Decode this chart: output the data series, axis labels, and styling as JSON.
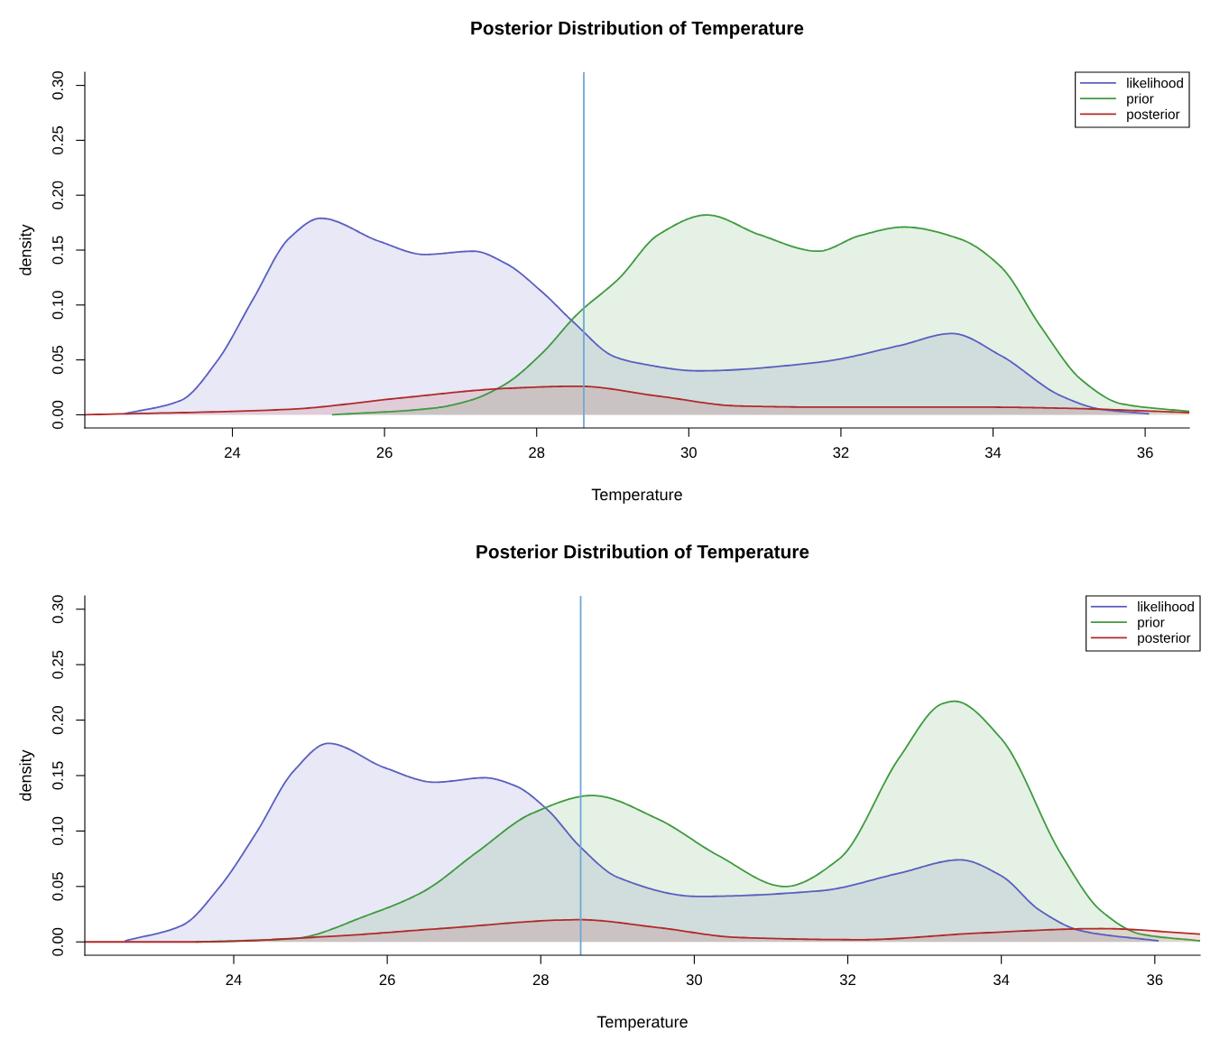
{
  "chart_data": [
    {
      "type": "area",
      "title": "Posterior Distribution of Temperature",
      "xlabel": "Temperature",
      "ylabel": "density",
      "xlim": [
        22.06,
        36.58
      ],
      "ylim": [
        -0.012,
        0.312
      ],
      "xticks": [
        24,
        26,
        28,
        30,
        32,
        34,
        36
      ],
      "yticks": [
        {
          "value": 0,
          "label": "0.00"
        },
        {
          "value": 0.05,
          "label": "0.05"
        },
        {
          "value": 0.1,
          "label": "0.10"
        },
        {
          "value": 0.15,
          "label": "0.15"
        },
        {
          "value": 0.2,
          "label": "0.20"
        },
        {
          "value": 0.25,
          "label": "0.25"
        },
        {
          "value": 0.3,
          "label": "0.30"
        }
      ],
      "legend": "top right",
      "grid": false,
      "ref_lines": [
        {
          "axis": "x",
          "value": 28.62,
          "color": "#6fa8d6"
        }
      ],
      "series": [
        {
          "name": "likelihood",
          "color": "#5a5fc0",
          "x": [
            22.59,
            23.32,
            23.8,
            24.27,
            24.75,
            25.16,
            25.93,
            26.53,
            27.17,
            27.59,
            28.07,
            28.49,
            29.02,
            29.34,
            30.13,
            31.72,
            32.77,
            33.46,
            34.1,
            34.9,
            35.42,
            36.04
          ],
          "values": [
            0.001,
            0.013,
            0.049,
            0.105,
            0.161,
            0.179,
            0.158,
            0.146,
            0.149,
            0.138,
            0.112,
            0.084,
            0.053,
            0.047,
            0.04,
            0.048,
            0.063,
            0.074,
            0.054,
            0.017,
            0.005,
            0.001
          ]
        },
        {
          "name": "prior",
          "color": "#3f9a3f",
          "x": [
            25.32,
            26.64,
            27.12,
            27.59,
            28.07,
            28.54,
            29.08,
            29.6,
            30.24,
            30.93,
            31.7,
            32.24,
            32.83,
            33.57,
            34.1,
            34.63,
            35.16,
            35.69,
            36.58
          ],
          "values": [
            0.0,
            0.006,
            0.013,
            0.028,
            0.056,
            0.092,
            0.124,
            0.164,
            0.182,
            0.164,
            0.149,
            0.163,
            0.171,
            0.16,
            0.135,
            0.08,
            0.032,
            0.01,
            0.003
          ]
        },
        {
          "name": "posterior",
          "color": "#b02a2a",
          "x": [
            22.06,
            24.75,
            26.17,
            27.59,
            28.54,
            29.6,
            30.66,
            31.72,
            33.83,
            34.9,
            36.58
          ],
          "values": [
            0.0,
            0.005,
            0.015,
            0.024,
            0.026,
            0.017,
            0.008,
            0.007,
            0.007,
            0.006,
            0.002
          ]
        }
      ]
    },
    {
      "type": "area",
      "title": "Posterior Distribution of Temperature",
      "xlabel": "Temperature",
      "ylabel": "density",
      "xlim": [
        22.06,
        36.59
      ],
      "ylim": [
        -0.012,
        0.312
      ],
      "xticks": [
        24,
        26,
        28,
        30,
        32,
        34,
        36
      ],
      "yticks": [
        {
          "value": 0,
          "label": "0.00"
        },
        {
          "value": 0.05,
          "label": "0.05"
        },
        {
          "value": 0.1,
          "label": "0.10"
        },
        {
          "value": 0.15,
          "label": "0.15"
        },
        {
          "value": 0.2,
          "label": "0.20"
        },
        {
          "value": 0.25,
          "label": "0.25"
        },
        {
          "value": 0.3,
          "label": "0.30"
        }
      ],
      "legend": "top right",
      "grid": false,
      "ref_lines": [
        {
          "axis": "x",
          "value": 28.52,
          "color": "#6fa8d6"
        }
      ],
      "series": [
        {
          "name": "likelihood",
          "color": "#5a5fc0",
          "x": [
            22.59,
            23.33,
            23.81,
            24.29,
            24.78,
            25.23,
            25.97,
            26.62,
            27.27,
            27.66,
            28.09,
            28.51,
            29.01,
            30.05,
            31.63,
            32.67,
            33.46,
            33.99,
            34.51,
            35.04,
            36.04
          ],
          "values": [
            0.001,
            0.015,
            0.049,
            0.098,
            0.154,
            0.179,
            0.157,
            0.144,
            0.148,
            0.141,
            0.119,
            0.086,
            0.058,
            0.041,
            0.046,
            0.062,
            0.074,
            0.06,
            0.028,
            0.01,
            0.001
          ]
        },
        {
          "name": "prior",
          "color": "#3f9a3f",
          "x": [
            23.51,
            24.78,
            25.74,
            26.46,
            27.17,
            27.89,
            28.67,
            29.52,
            30.31,
            31.18,
            31.89,
            32.67,
            33.24,
            33.39,
            33.99,
            34.78,
            35.3,
            35.82,
            36.59
          ],
          "values": [
            0.0,
            0.003,
            0.024,
            0.045,
            0.081,
            0.116,
            0.132,
            0.111,
            0.078,
            0.05,
            0.075,
            0.166,
            0.215,
            0.217,
            0.184,
            0.079,
            0.028,
            0.007,
            0.001
          ]
        },
        {
          "name": "posterior",
          "color": "#b02a2a",
          "x": [
            22.06,
            23.51,
            25.26,
            26.69,
            28.51,
            29.52,
            30.58,
            32.16,
            33.72,
            35.3,
            36.59
          ],
          "values": [
            0.0,
            0.0,
            0.005,
            0.012,
            0.02,
            0.013,
            0.004,
            0.002,
            0.008,
            0.012,
            0.007
          ]
        }
      ]
    }
  ]
}
